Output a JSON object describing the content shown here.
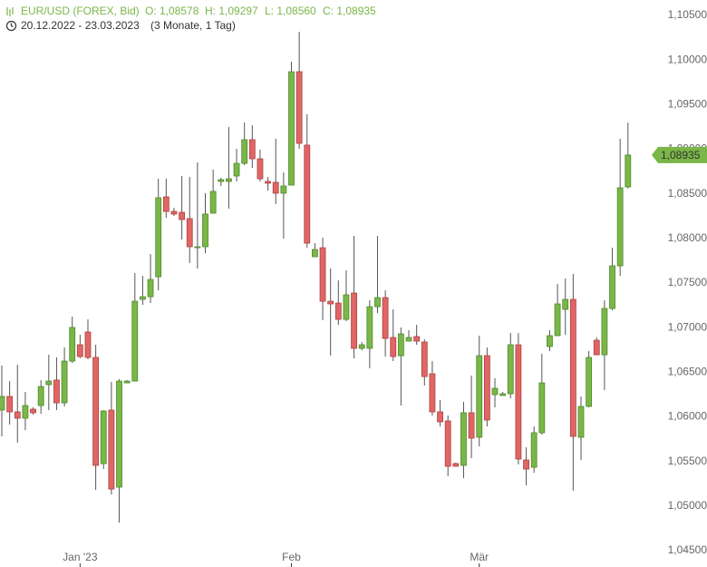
{
  "chart_data": {
    "type": "candlestick",
    "title": "EUR/USD (FOREX, Bid)",
    "ohlc_labels": [
      "O: 1,08578",
      "H: 1,09297",
      "L: 1,08560",
      "C: 1,08935"
    ],
    "subtitle": "20.12.2022 - 23.03.2023",
    "range_note": "(3 Monate, 1 Tag)",
    "last_price_label": "1,08935",
    "colors": {
      "up": "#7ab648",
      "down": "#e06666",
      "up_edge": "#4f8a2c",
      "down_edge": "#b04040",
      "wick": "#555555"
    },
    "grid": false,
    "ylim": [
      1.045,
      1.105
    ],
    "yticks": [
      {
        "value": 1.045,
        "label": "1,04500"
      },
      {
        "value": 1.05,
        "label": "1,05000"
      },
      {
        "value": 1.055,
        "label": "1,05500"
      },
      {
        "value": 1.06,
        "label": "1,06000"
      },
      {
        "value": 1.065,
        "label": "1,06500"
      },
      {
        "value": 1.07,
        "label": "1,07000"
      },
      {
        "value": 1.075,
        "label": "1,07500"
      },
      {
        "value": 1.08,
        "label": "1,08000"
      },
      {
        "value": 1.085,
        "label": "1,08500"
      },
      {
        "value": 1.09,
        "label": "1,09000"
      },
      {
        "value": 1.095,
        "label": "1,09500"
      },
      {
        "value": 1.1,
        "label": "1,10000"
      },
      {
        "value": 1.105,
        "label": "1,10500"
      }
    ],
    "categories": [
      null,
      null,
      null,
      null,
      null,
      null,
      null,
      null,
      null,
      null,
      "Jan '23",
      null,
      null,
      null,
      null,
      null,
      null,
      null,
      null,
      null,
      null,
      null,
      null,
      null,
      null,
      null,
      null,
      null,
      null,
      null,
      null,
      null,
      null,
      null,
      null,
      null,
      null,
      "Feb",
      null,
      null,
      null,
      null,
      null,
      null,
      null,
      null,
      null,
      null,
      null,
      null,
      null,
      null,
      null,
      null,
      null,
      null,
      null,
      null,
      null,
      null,
      null,
      "Mär",
      null,
      null,
      null,
      null,
      null,
      null,
      null,
      null,
      null,
      null,
      null,
      null,
      null,
      null,
      null,
      null,
      null,
      null,
      null
    ],
    "series": [
      {
        "name": "EUR/USD",
        "open": [
          1.06076,
          1.06229,
          1.06056,
          1.05985,
          1.06086,
          1.06127,
          1.06361,
          1.06412,
          1.06157,
          1.06625,
          1.06808,
          1.06951,
          1.06666,
          1.05476,
          1.06076,
          1.05212,
          1.06381,
          1.06401,
          1.07317,
          1.07347,
          1.07571,
          1.08466,
          1.08303,
          1.08293,
          1.08222,
          1.07896,
          1.07907,
          1.08283,
          1.08639,
          1.08639,
          1.087,
          1.08842,
          1.09107,
          1.08893,
          1.08639,
          1.08629,
          1.08507,
          1.08598,
          1.09869,
          1.09046,
          1.07795,
          1.07896,
          1.07296,
          1.07276,
          1.07093,
          1.07388,
          1.06768,
          1.06768,
          1.07235,
          1.07337,
          1.0689,
          1.06686,
          1.06849,
          1.069,
          1.06839,
          1.06483,
          1.06056,
          1.05954,
          1.05476,
          1.05456,
          1.06046,
          1.05771,
          1.06686,
          1.06249,
          1.06239,
          1.06259,
          1.06808,
          1.05517,
          1.05435,
          1.05822,
          1.06788,
          1.0691,
          1.07205,
          1.07317,
          1.05771,
          1.06117,
          1.06859,
          1.06696,
          1.07215,
          1.07693,
          1.08578
        ],
        "high": [
          1.06574,
          1.06401,
          1.06585,
          1.0628,
          1.06107,
          1.06412,
          1.06696,
          1.06666,
          1.06778,
          1.07124,
          1.0692,
          1.07093,
          1.06808,
          1.06076,
          1.06391,
          1.06422,
          1.06412,
          1.07612,
          1.07581,
          1.07825,
          1.08669,
          1.08669,
          1.08344,
          1.087,
          1.0869,
          1.08852,
          1.08507,
          1.08771,
          1.0868,
          1.09249,
          1.09005,
          1.093,
          1.09269,
          1.08995,
          1.0869,
          1.09117,
          1.08741,
          1.09981,
          1.10317,
          1.09391,
          1.07947,
          1.08008,
          1.07663,
          1.0753,
          1.07642,
          1.08029,
          1.06839,
          1.07307,
          1.08029,
          1.07418,
          1.07205,
          1.07002,
          1.06971,
          1.07032,
          1.06869,
          1.06625,
          1.06188,
          1.06015,
          1.05486,
          1.06168,
          1.06463,
          1.0691,
          1.06778,
          1.06432,
          1.0628,
          1.0694,
          1.0694,
          1.05659,
          1.05893,
          1.06707,
          1.06971,
          1.0749,
          1.07551,
          1.07602,
          1.06229,
          1.06737,
          1.0689,
          1.07307,
          1.07896,
          1.09117,
          1.09297
        ],
        "low": [
          1.05781,
          1.05913,
          1.0571,
          1.05852,
          1.06025,
          1.06035,
          1.06076,
          1.06076,
          1.06117,
          1.06605,
          1.06656,
          1.06646,
          1.05181,
          1.05415,
          1.0513,
          1.04815,
          1.06381,
          1.06401,
          1.07256,
          1.07276,
          1.07418,
          1.08232,
          1.08252,
          1.07988,
          1.07724,
          1.07663,
          1.07835,
          1.08283,
          1.08588,
          1.08334,
          1.08639,
          1.08822,
          1.08791,
          1.08639,
          1.08537,
          1.08385,
          1.07998,
          1.08598,
          1.09005,
          1.07896,
          1.07795,
          1.07083,
          1.06686,
          1.07032,
          1.07073,
          1.06656,
          1.06747,
          1.06544,
          1.07164,
          1.06676,
          1.06625,
          1.06127,
          1.06849,
          1.06808,
          1.06351,
          1.06015,
          1.05893,
          1.05334,
          1.05446,
          1.05313,
          1.05537,
          1.05669,
          1.05893,
          1.06107,
          1.06239,
          1.06208,
          1.05466,
          1.05232,
          1.05374,
          1.05801,
          1.06737,
          1.0691,
          1.0692,
          1.05171,
          1.05517,
          1.06107,
          1.06696,
          1.063,
          1.07195,
          1.07581,
          1.0856
        ],
        "close": [
          1.06229,
          1.06056,
          1.05985,
          1.06127,
          1.06046,
          1.0634,
          1.06401,
          1.06157,
          1.06625,
          1.07002,
          1.06676,
          1.06666,
          1.05456,
          1.06066,
          1.05191,
          1.06401,
          1.06401,
          1.07296,
          1.07347,
          1.0754,
          1.08456,
          1.08303,
          1.08273,
          1.08212,
          1.07907,
          1.07907,
          1.08273,
          1.08527,
          1.08659,
          1.08669,
          1.08842,
          1.09107,
          1.08893,
          1.08669,
          1.08619,
          1.08507,
          1.08588,
          1.09869,
          1.09066,
          1.07947,
          1.07876,
          1.07296,
          1.07266,
          1.07093,
          1.07368,
          1.06768,
          1.06808,
          1.07235,
          1.07337,
          1.06879,
          1.06676,
          1.0693,
          1.0689,
          1.06849,
          1.06452,
          1.06056,
          1.05944,
          1.05446,
          1.05446,
          1.06046,
          1.05761,
          1.06686,
          1.05964,
          1.0632,
          1.06259,
          1.06808,
          1.05527,
          1.05415,
          1.05822,
          1.06381,
          1.0691,
          1.07266,
          1.07317,
          1.05781,
          1.06117,
          1.06666,
          1.06696,
          1.07215,
          1.07693,
          1.08568,
          1.08935
        ]
      }
    ]
  }
}
